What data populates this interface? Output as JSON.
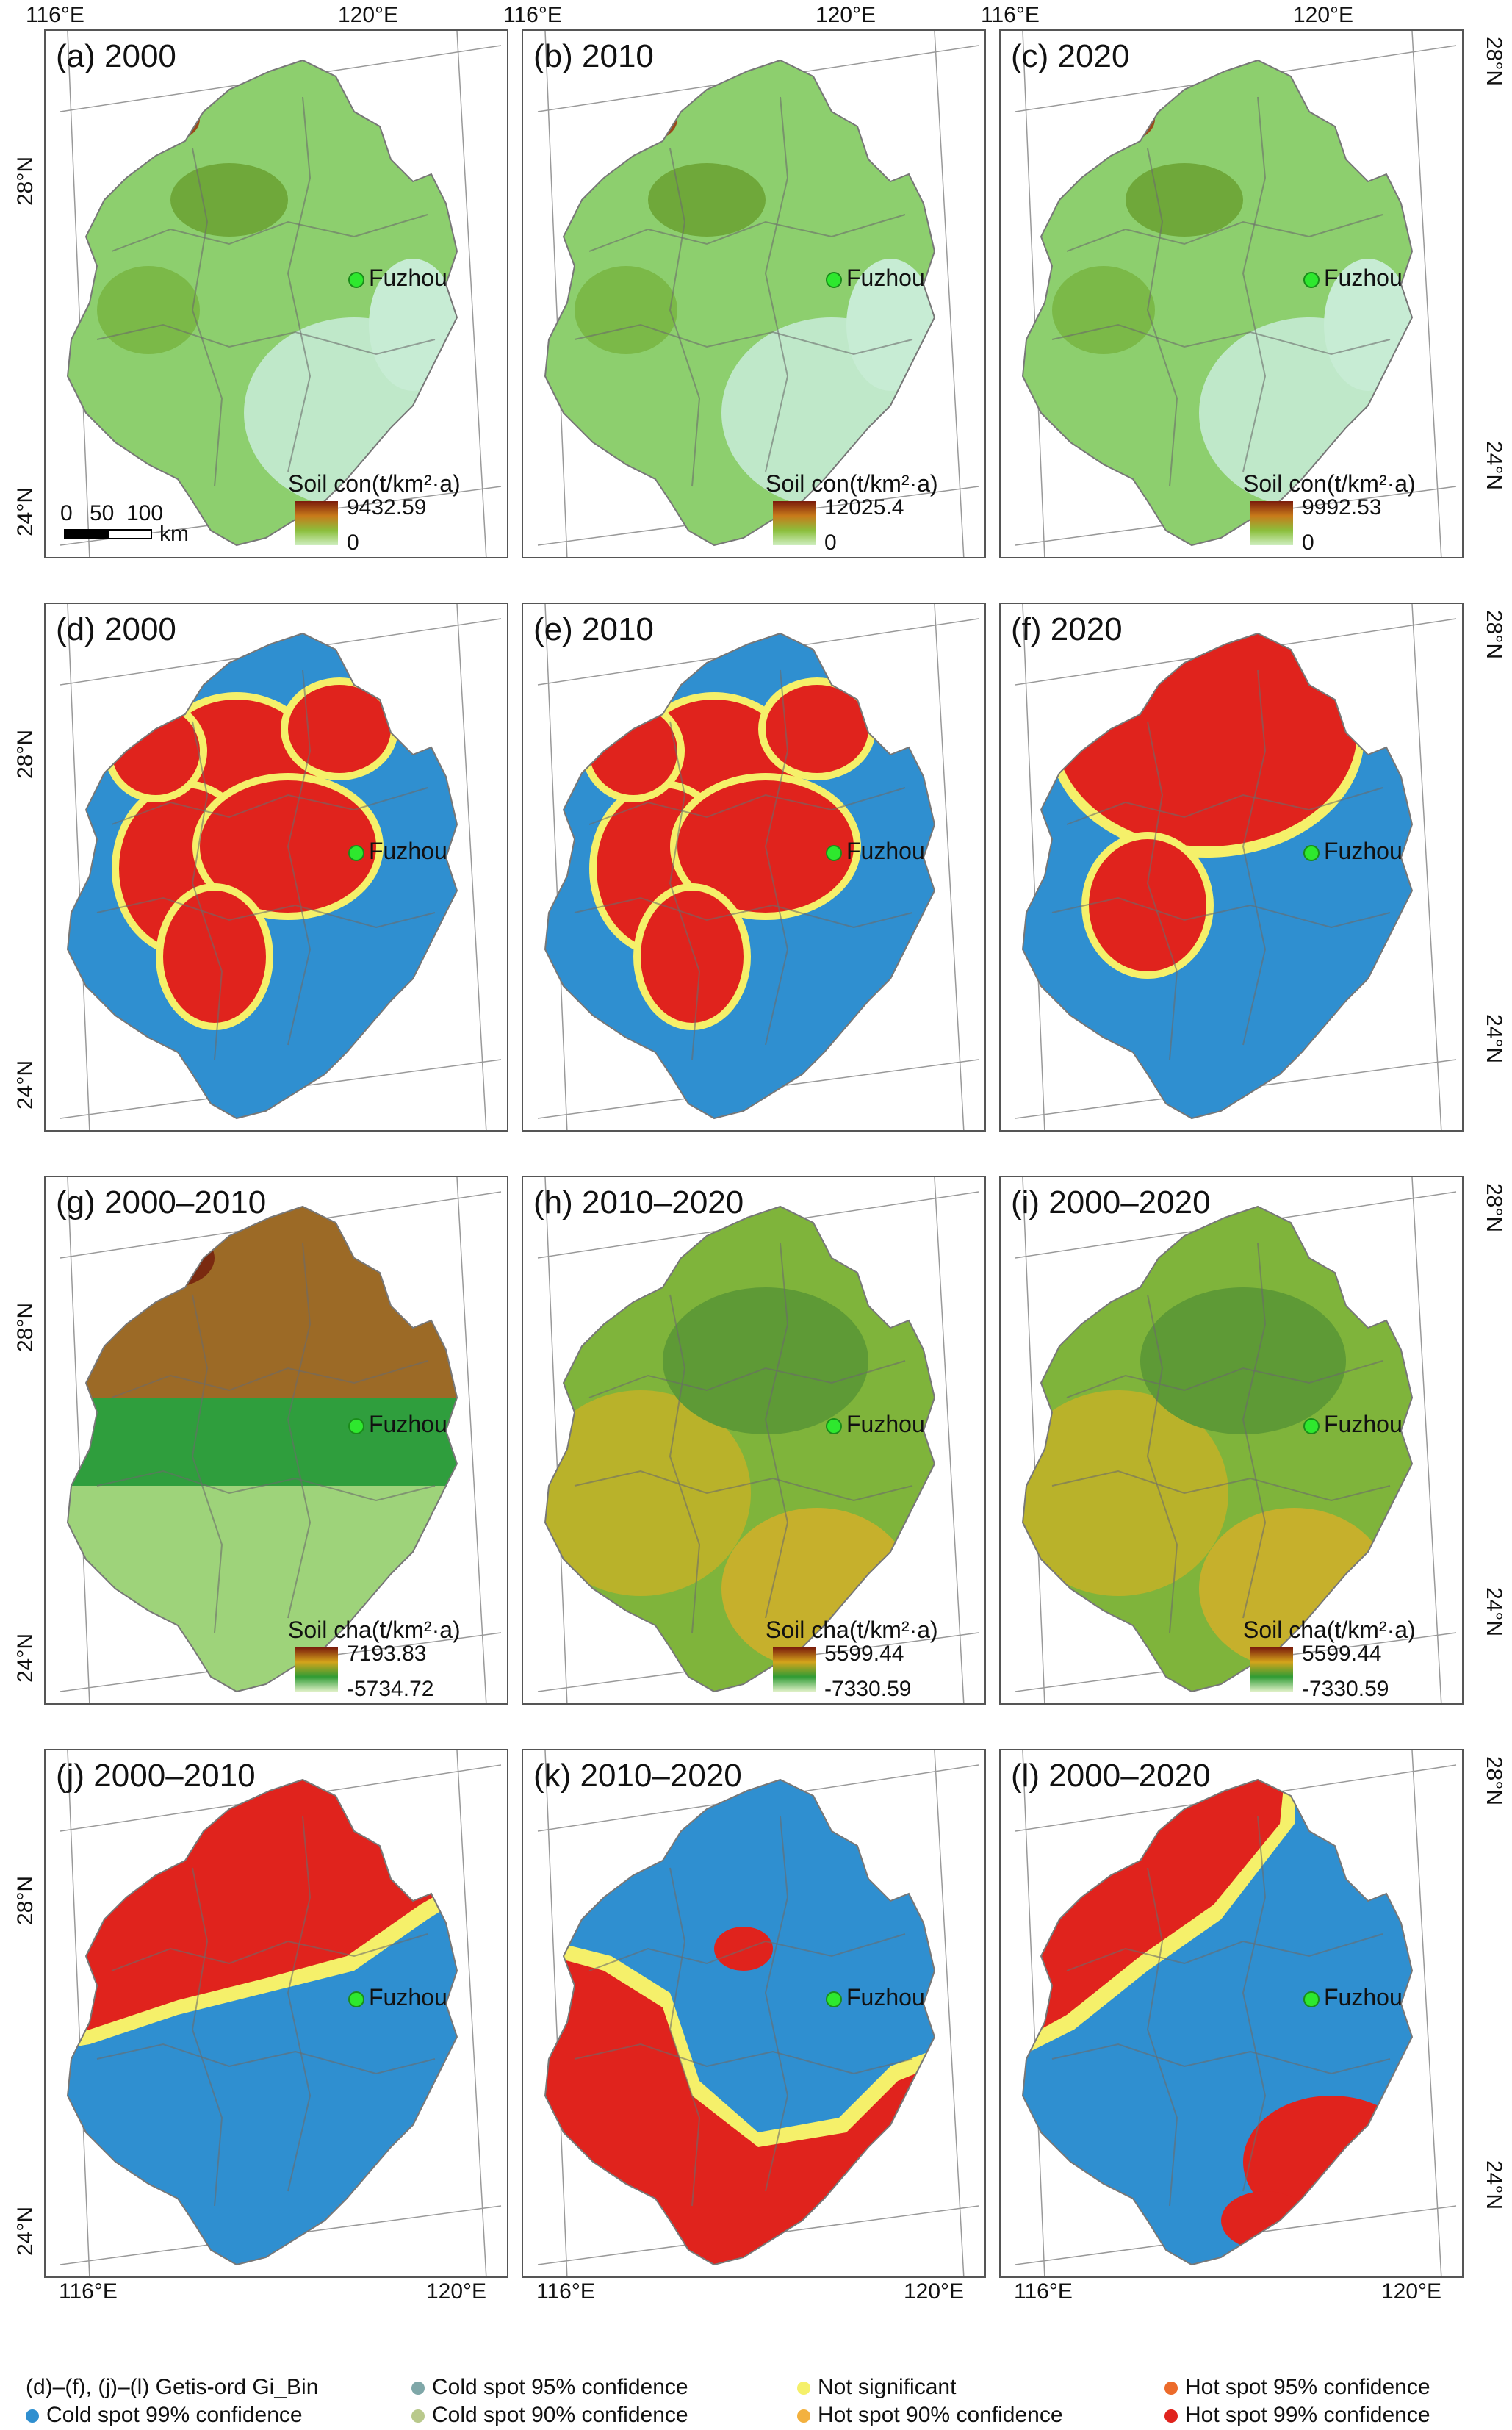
{
  "rows": [
    {
      "row_type": "soil-con",
      "panels": [
        {
          "label": "(a) 2000",
          "legend_title": "Soil con(t/km²·a)",
          "max": "9432.59",
          "min": "0"
        },
        {
          "label": "(b) 2010",
          "legend_title": "Soil con(t/km²·a)",
          "max": "12025.4",
          "min": "0"
        },
        {
          "label": "(c) 2020",
          "legend_title": "Soil con(t/km²·a)",
          "max": "9992.53",
          "min": "0"
        }
      ]
    },
    {
      "row_type": "hotspot",
      "panels": [
        {
          "label": "(d) 2000"
        },
        {
          "label": "(e) 2010"
        },
        {
          "label": "(f) 2020"
        }
      ]
    },
    {
      "row_type": "soil-cha",
      "panels": [
        {
          "label": "(g) 2000–2010",
          "legend_title": "Soil cha(t/km²·a)",
          "max": "7193.83",
          "min": "-5734.72"
        },
        {
          "label": "(h) 2010–2020",
          "legend_title": "Soil cha(t/km²·a)",
          "max": "5599.44",
          "min": "-7330.59"
        },
        {
          "label": "(i) 2000–2020",
          "legend_title": "Soil cha(t/km²·a)",
          "max": "5599.44",
          "min": "-7330.59"
        }
      ]
    },
    {
      "row_type": "hotspot",
      "panels": [
        {
          "label": "(j) 2000–2010"
        },
        {
          "label": "(k) 2010–2020"
        },
        {
          "label": "(l) 2000–2020"
        }
      ]
    }
  ],
  "city": "Fuzhou",
  "coords": {
    "lon_116": "116°E",
    "lon_120": "120°E",
    "lat_28": "28°N",
    "lat_24": "24°N"
  },
  "scale_bar": {
    "labels": [
      "0",
      "50",
      "100"
    ],
    "unit": "km"
  },
  "bottom_legend": {
    "title": "(d)–(f), (j)–(l) Getis-ord Gi_Bin",
    "items": [
      {
        "label": "Cold spot 99% confidence",
        "color": "#2f8fd0"
      },
      {
        "label": "Cold spot 95% confidence",
        "color": "#7fa7a8"
      },
      {
        "label": "Cold spot 90% confidence",
        "color": "#b9c98c"
      },
      {
        "label": "Not significant",
        "color": "#f5f06a"
      },
      {
        "label": "Hot spot 90% confidence",
        "color": "#f3b13f"
      },
      {
        "label": "Hot spot 95% confidence",
        "color": "#ec6b2b"
      },
      {
        "label": "Hot spot 99% confidence",
        "color": "#e0231d"
      }
    ]
  },
  "colors": {
    "cold99": "#2f8fd0",
    "notsig": "#f5f06a",
    "hot99": "#e0231d",
    "land_con": "#8ccf6b",
    "land_cha": "#6fae4a"
  }
}
